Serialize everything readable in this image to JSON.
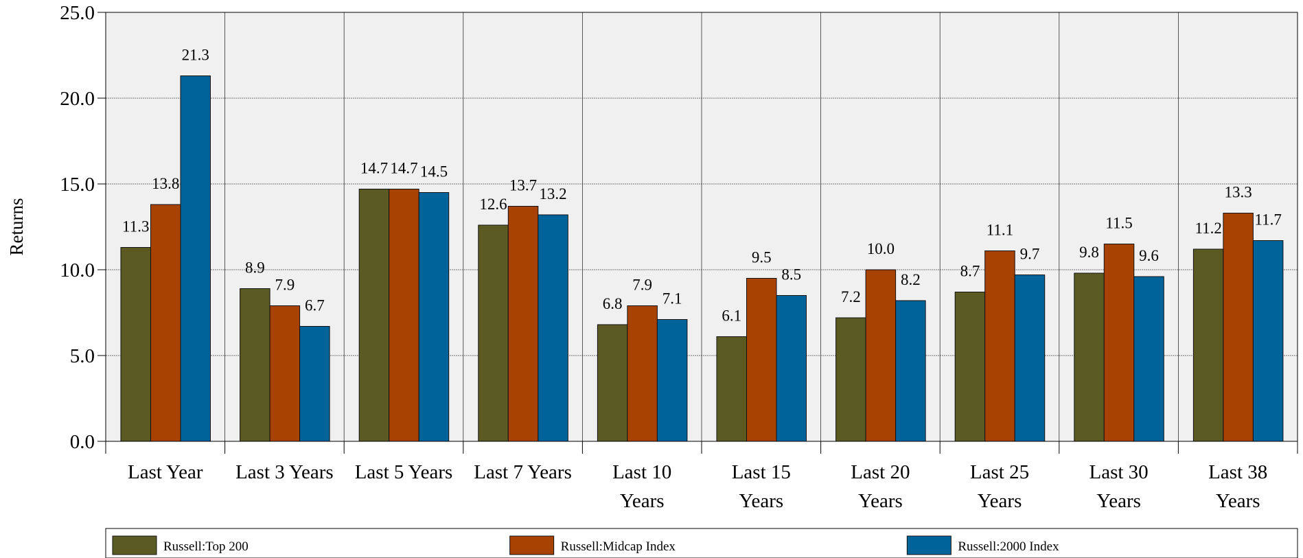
{
  "chart_data": {
    "type": "bar",
    "ylabel": "Returns",
    "ylim": [
      0,
      25
    ],
    "yticks": [
      "0.0",
      "5.0",
      "10.0",
      "15.0",
      "20.0",
      "25.0"
    ],
    "grid": true,
    "legend_position": "bottom",
    "categories": [
      [
        "Last Year"
      ],
      [
        "Last 3 Years"
      ],
      [
        "Last 5 Years"
      ],
      [
        "Last 7 Years"
      ],
      [
        "Last 10",
        "Years"
      ],
      [
        "Last 15",
        "Years"
      ],
      [
        "Last 20",
        "Years"
      ],
      [
        "Last 25",
        "Years"
      ],
      [
        "Last 30",
        "Years"
      ],
      [
        "Last 38",
        "Years"
      ]
    ],
    "series": [
      {
        "name": "Russell:Top 200",
        "color": "#5a5a22",
        "values": [
          11.3,
          8.9,
          14.7,
          12.6,
          6.8,
          6.1,
          7.2,
          8.7,
          9.8,
          11.2
        ],
        "labels": [
          "11.3",
          "8.9",
          "14.7",
          "12.6",
          "6.8",
          "6.1",
          "7.2",
          "8.7",
          "9.8",
          "11.2"
        ]
      },
      {
        "name": "Russell:Midcap Index",
        "color": "#a84203",
        "values": [
          13.8,
          7.9,
          14.7,
          13.7,
          7.9,
          9.5,
          10.0,
          11.1,
          11.5,
          13.3
        ],
        "labels": [
          "13.8",
          "7.9",
          "14.7",
          "13.7",
          "7.9",
          "9.5",
          "10.0",
          "11.1",
          "11.5",
          "13.3"
        ]
      },
      {
        "name": "Russell:2000 Index",
        "color": "#00649b",
        "values": [
          21.3,
          6.7,
          14.5,
          13.2,
          7.1,
          8.5,
          8.2,
          9.7,
          9.6,
          11.7
        ],
        "labels": [
          "21.3",
          "6.7",
          "14.5",
          "13.2",
          "7.1",
          "8.5",
          "8.2",
          "9.7",
          "9.6",
          "11.7"
        ]
      }
    ]
  }
}
